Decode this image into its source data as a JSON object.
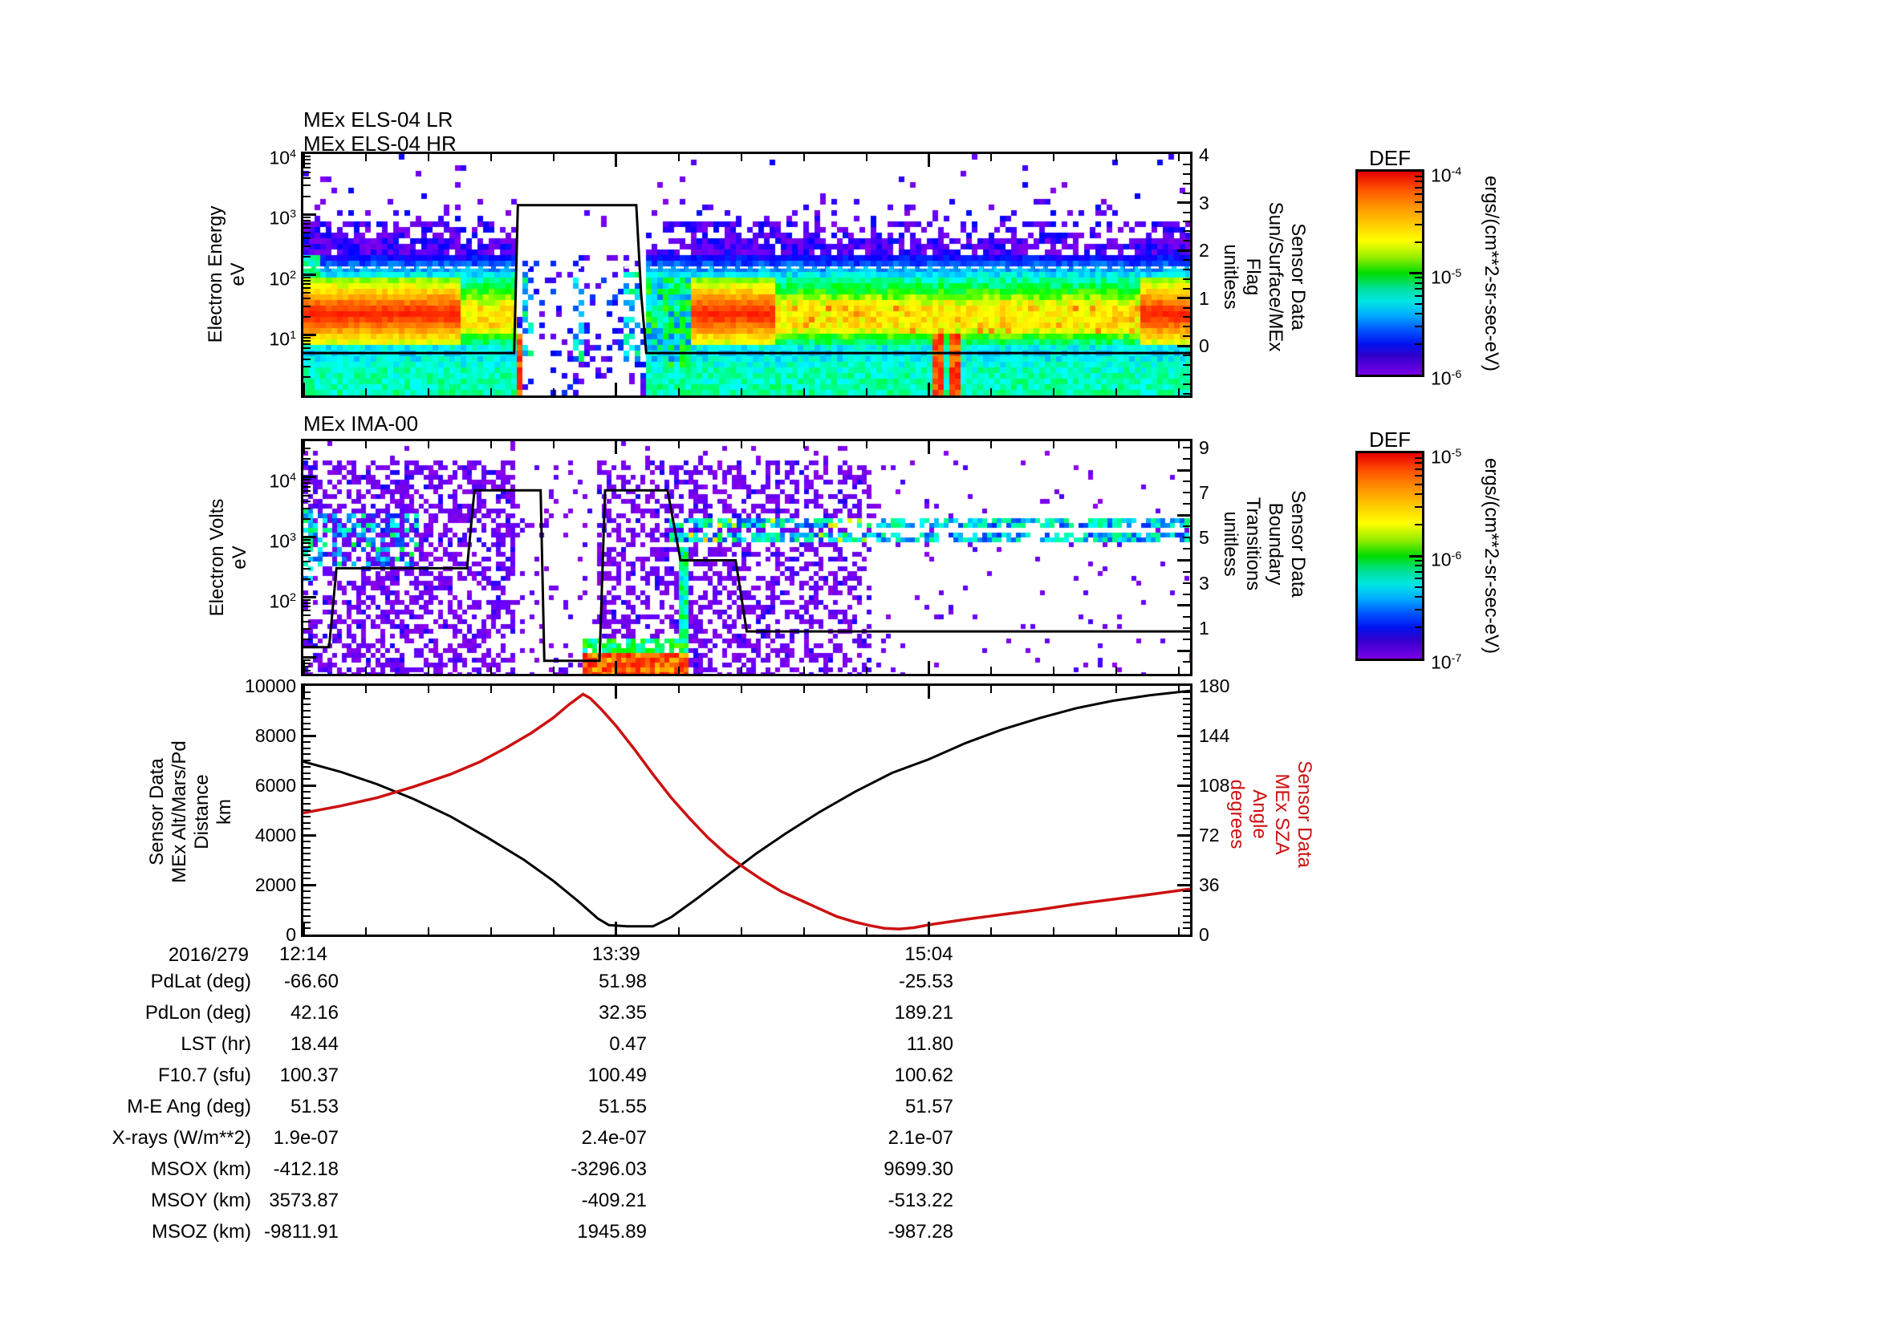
{
  "panels": {
    "els": {
      "titles": [
        "MEx ELS-04 LR",
        "MEx ELS-04 HR"
      ],
      "left_title": [
        "Electron Energy",
        "eV"
      ],
      "right_title": [
        "Sensor Data",
        "Sun/Surface/MEx",
        "Flag",
        "unitless"
      ],
      "left_ticks": [
        {
          "v": 4,
          "label": "10^4"
        },
        {
          "v": 3,
          "label": "10^3"
        },
        {
          "v": 2,
          "label": "10^2"
        },
        {
          "v": 1,
          "label": "10^1"
        }
      ],
      "right_ticks": [
        {
          "v": 4,
          "label": "4"
        },
        {
          "v": 3,
          "label": "3"
        },
        {
          "v": 2,
          "label": "2"
        },
        {
          "v": 1,
          "label": "1"
        },
        {
          "v": 0,
          "label": "0"
        }
      ]
    },
    "ima": {
      "title": "MEx IMA-00",
      "left_title": [
        "Electron Volts",
        "eV"
      ],
      "right_title": [
        "Sensor Data",
        "Boundary",
        "Transitions",
        "unitless"
      ],
      "left_ticks": [
        {
          "v": 4,
          "label": "10^4"
        },
        {
          "v": 3,
          "label": "10^3"
        },
        {
          "v": 2,
          "label": "10^2"
        }
      ],
      "right_ticks": [
        {
          "v": 9,
          "label": "9"
        },
        {
          "v": 7,
          "label": "7"
        },
        {
          "v": 5,
          "label": "5"
        },
        {
          "v": 3,
          "label": "3"
        },
        {
          "v": 1,
          "label": "1"
        }
      ]
    },
    "orbit": {
      "left_title": [
        "Sensor Data",
        "MEx Alt/Mars/Pd",
        "Distance",
        "km"
      ],
      "right_title": [
        "Sensor Data",
        "MEx SZA",
        "Angle",
        "degrees"
      ],
      "left_ticks": [
        {
          "v": 10000,
          "label": "10000"
        },
        {
          "v": 8000,
          "label": "8000"
        },
        {
          "v": 6000,
          "label": "6000"
        },
        {
          "v": 4000,
          "label": "4000"
        },
        {
          "v": 2000,
          "label": "2000"
        },
        {
          "v": 0,
          "label": "0"
        }
      ],
      "right_ticks": [
        {
          "v": 180,
          "label": "180"
        },
        {
          "v": 144,
          "label": "144"
        },
        {
          "v": 108,
          "label": "108"
        },
        {
          "v": 72,
          "label": "72"
        },
        {
          "v": 36,
          "label": "36"
        },
        {
          "v": 0,
          "label": "0"
        }
      ]
    }
  },
  "colorbars": [
    {
      "title": "DEF",
      "units": "ergs/(cm**2-sr-sec-eV)",
      "ticks": [
        {
          "v": -4,
          "label": "10^-4"
        },
        {
          "v": -5,
          "label": "10^-5"
        },
        {
          "v": -6,
          "label": "10^-6"
        }
      ]
    },
    {
      "title": "DEF",
      "units": "ergs/(cm**2-sr-sec-eV)",
      "ticks": [
        {
          "v": -5,
          "label": "10^-5"
        },
        {
          "v": -6,
          "label": "10^-6"
        },
        {
          "v": -7,
          "label": "10^-7"
        }
      ]
    }
  ],
  "table": {
    "date": "2016/279",
    "times": [
      "12:14",
      "13:39",
      "15:04"
    ],
    "rows": [
      {
        "label": "PdLat (deg)",
        "values": [
          "-66.60",
          "51.98",
          "-25.53"
        ]
      },
      {
        "label": "PdLon (deg)",
        "values": [
          "42.16",
          "32.35",
          "189.21"
        ]
      },
      {
        "label": "LST (hr)",
        "values": [
          "18.44",
          "0.47",
          "11.80"
        ]
      },
      {
        "label": "F10.7 (sfu)",
        "values": [
          "100.37",
          "100.49",
          "100.62"
        ]
      },
      {
        "label": "M-E Ang (deg)",
        "values": [
          "51.53",
          "51.55",
          "51.57"
        ]
      },
      {
        "label": "X-rays (W/m**2)",
        "values": [
          "1.9e-07",
          "2.4e-07",
          "2.1e-07"
        ]
      },
      {
        "label": "MSOX (km)",
        "values": [
          "-412.18",
          "-3296.03",
          "9699.30"
        ]
      },
      {
        "label": "MSOY (km)",
        "values": [
          "3573.87",
          "-409.21",
          "-513.22"
        ]
      },
      {
        "label": "MSOZ (km)",
        "values": [
          "-9811.91",
          "1945.89",
          "-987.28"
        ]
      }
    ]
  },
  "chart_data": [
    {
      "type": "heatmap",
      "title": "MEx ELS-04 LR / MEx ELS-04 HR",
      "ylabel": "Electron Energy (eV)",
      "y_log_range": [
        1,
        10000
      ],
      "x_major_tick_labels": [
        "12:14",
        "13:39",
        "15:04"
      ],
      "x_major_tick_minutes": [
        0,
        85,
        170
      ],
      "x_total_minutes": 241,
      "colorbar": {
        "title": "DEF",
        "units": "ergs/(cm**2-sr-sec-eV)",
        "max": "10^-4",
        "min": "10^-6"
      },
      "overlay_line": {
        "name": "Sun/Surface/MEx Flag",
        "axis_label": "Sensor Data Sun/Surface/MEx Flag (unitless)",
        "axis_range": [
          0,
          4
        ],
        "points": [
          [
            0,
            -0.15
          ],
          [
            57.3,
            -0.15
          ],
          [
            58.3,
            2.95
          ],
          [
            90.5,
            2.95
          ],
          [
            91.8,
            1.1
          ],
          [
            93.2,
            -0.15
          ],
          [
            241,
            -0.15
          ]
        ]
      },
      "features": {
        "hot_periods": [
          [
            0,
            42
          ],
          [
            105,
            129
          ],
          [
            228,
            241
          ]
        ],
        "gap": [
          58,
          93.5
        ],
        "transition": [
          93.5,
          105
        ],
        "orange_streaks": [
          [
            58.2,
            59.6,
            1.05
          ],
          [
            170.8,
            173.6,
            1.0
          ],
          [
            175.6,
            178.2,
            1.0
          ]
        ],
        "cyan_columns": [
          [
            59.5,
            62
          ],
          [
            74,
            77
          ],
          [
            86.5,
            91
          ]
        ],
        "main_band_center_logE": 1.3,
        "white_marker_line_logE": 2.12
      }
    },
    {
      "type": "heatmap",
      "title": "MEx IMA-00",
      "ylabel": "Electron Volts (eV)",
      "y_log_range": [
        5.4,
        39000
      ],
      "x_total_minutes": 241,
      "colorbar": {
        "title": "DEF",
        "units": "ergs/(cm**2-sr-sec-eV)",
        "max": "10^-5",
        "min": "10^-7"
      },
      "overlay_line": {
        "name": "Boundary Transitions",
        "axis_label": "Sensor Data Boundary Transitions (unitless)",
        "axis_range": [
          0,
          9
        ],
        "points": [
          [
            0,
            0.15
          ],
          [
            7,
            0.15
          ],
          [
            9,
            3.65
          ],
          [
            44.5,
            3.65
          ],
          [
            46.5,
            7.1
          ],
          [
            64.5,
            7.1
          ],
          [
            65.5,
            -0.45
          ],
          [
            80.5,
            -0.45
          ],
          [
            82,
            7.1
          ],
          [
            99,
            7.1
          ],
          [
            102.5,
            4.0
          ],
          [
            117.5,
            4.0
          ],
          [
            120.5,
            0.85
          ],
          [
            241,
            0.85
          ]
        ]
      },
      "features": {
        "speckle_density_periods": [
          [
            0,
            58,
            0.5
          ],
          [
            58,
            80,
            0.1
          ],
          [
            80,
            131,
            0.48
          ],
          [
            131,
            155,
            0.42
          ],
          [
            155,
            241,
            0.035
          ]
        ],
        "cyan_band": {
          "t": [
            0,
            32
          ],
          "logE": [
            2.55,
            3.4
          ]
        },
        "beams": {
          "t_start": 99,
          "rows": [
            3.26,
            2.97
          ],
          "fade_after_t": 155
        },
        "hot_bottom": {
          "t": [
            76,
            104.5
          ],
          "logE_max": 1.08
        },
        "cyan_column": {
          "t": [
            101.5,
            104.5
          ],
          "logE_max": 2.8
        }
      }
    },
    {
      "type": "line",
      "x_axis": {
        "date": "2016/279",
        "tick_labels": [
          "12:14",
          "13:39",
          "15:04"
        ],
        "tick_minutes": [
          0,
          85,
          170
        ],
        "total_minutes": 241
      },
      "left_axis": {
        "label": "Sensor Data MEx Alt/Mars/Pd Distance (km)",
        "range": [
          0,
          10000
        ]
      },
      "right_axis": {
        "label": "Sensor Data MEx SZA Angle (degrees)",
        "range": [
          0,
          180
        ],
        "color": "#cc1111"
      },
      "series": [
        {
          "name": "MEx Alt/Mars/Pd Distance",
          "axis": "left",
          "color": "#000000",
          "points": [
            [
              0,
              6950
            ],
            [
              10,
              6550
            ],
            [
              20,
              6050
            ],
            [
              30,
              5450
            ],
            [
              40,
              4750
            ],
            [
              50,
              3900
            ],
            [
              60,
              3000
            ],
            [
              68,
              2150
            ],
            [
              75,
              1300
            ],
            [
              80,
              650
            ],
            [
              83,
              380
            ],
            [
              88,
              330
            ],
            [
              95,
              330
            ],
            [
              100,
              700
            ],
            [
              107,
              1450
            ],
            [
              115,
              2350
            ],
            [
              123,
              3250
            ],
            [
              131,
              4050
            ],
            [
              140,
              4900
            ],
            [
              150,
              5750
            ],
            [
              160,
              6500
            ],
            [
              170,
              7050
            ],
            [
              180,
              7700
            ],
            [
              190,
              8250
            ],
            [
              200,
              8700
            ],
            [
              210,
              9100
            ],
            [
              220,
              9400
            ],
            [
              230,
              9620
            ],
            [
              241,
              9800
            ]
          ]
        },
        {
          "name": "MEx SZA Angle",
          "axis": "right",
          "color": "#cc1111",
          "points": [
            [
              0,
              88
            ],
            [
              10,
              93
            ],
            [
              20,
              99
            ],
            [
              30,
              107
            ],
            [
              40,
              116
            ],
            [
              48,
              125
            ],
            [
              55,
              135
            ],
            [
              62,
              146
            ],
            [
              68,
              157
            ],
            [
              72,
              166
            ],
            [
              75,
              172
            ],
            [
              76,
              174
            ],
            [
              78,
              171
            ],
            [
              81,
              163
            ],
            [
              85,
              151
            ],
            [
              90,
              134
            ],
            [
              95,
              116
            ],
            [
              100,
              99
            ],
            [
              105,
              84
            ],
            [
              110,
              70
            ],
            [
              115,
              58
            ],
            [
              120,
              48
            ],
            [
              125,
              39
            ],
            [
              130,
              31
            ],
            [
              135,
              25
            ],
            [
              140,
              19
            ],
            [
              145,
              13
            ],
            [
              150,
              9
            ],
            [
              154,
              6.5
            ],
            [
              158,
              4.5
            ],
            [
              162,
              4
            ],
            [
              166,
              5
            ],
            [
              170,
              7
            ],
            [
              175,
              9
            ],
            [
              180,
              11
            ],
            [
              190,
              14.5
            ],
            [
              200,
              18
            ],
            [
              210,
              22
            ],
            [
              220,
              25.5
            ],
            [
              230,
              29
            ],
            [
              241,
              33
            ]
          ]
        }
      ]
    }
  ]
}
